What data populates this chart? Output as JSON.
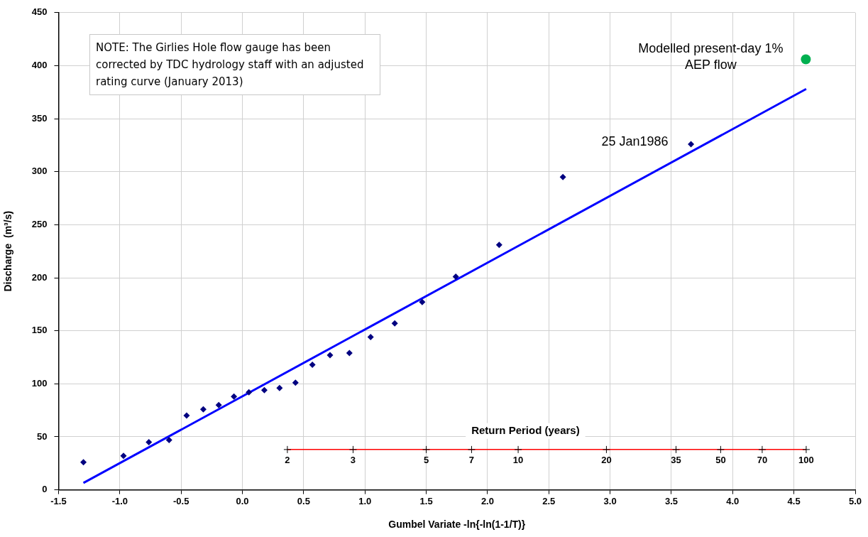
{
  "chart_data": {
    "type": "scatter",
    "xlabel": "Gumbel Variate -ln{-ln(1-1/T)}",
    "ylabel": "Discharge  (m³/s)",
    "xlim": [
      -1.5,
      5.0
    ],
    "xticks": [
      {
        "value": -1.5,
        "label": "-1.5"
      },
      {
        "value": -1.0,
        "label": "-1.0"
      },
      {
        "value": -0.5,
        "label": "-0.5"
      },
      {
        "value": 0,
        "label": "0.0"
      },
      {
        "value": 0.5,
        "label": "0.5"
      },
      {
        "value": 1.0,
        "label": "1.0"
      },
      {
        "value": 1.5,
        "label": "1.5"
      },
      {
        "value": 2.0,
        "label": "2.0"
      },
      {
        "value": 2.5,
        "label": "2.5"
      },
      {
        "value": 3.0,
        "label": "3.0"
      },
      {
        "value": 3.5,
        "label": "3.5"
      },
      {
        "value": 4.0,
        "label": "4.0"
      },
      {
        "value": 4.5,
        "label": "4.5"
      },
      {
        "value": 5.0,
        "label": "5.0"
      }
    ],
    "ylim": [
      0,
      450
    ],
    "yticks": [
      0,
      50,
      100,
      150,
      200,
      250,
      300,
      350,
      400,
      450
    ],
    "grid": true,
    "legend": false,
    "series": [
      {
        "color": "#000080",
        "marker": "diamond",
        "x": [
          -1.297,
          -0.97,
          -0.763,
          -0.598,
          -0.455,
          -0.319,
          -0.193,
          -0.069,
          0.053,
          0.179,
          0.303,
          0.433,
          0.571,
          0.715,
          0.873,
          1.046,
          1.243,
          1.467,
          1.741,
          2.095,
          2.615,
          3.66
        ],
        "values": [
          26,
          32,
          45,
          47,
          70,
          76,
          80,
          88,
          92,
          94,
          96,
          101,
          118,
          127,
          129,
          144,
          157,
          177,
          201,
          231,
          295,
          326
        ]
      },
      {
        "type": "line",
        "color": "#0000ff",
        "marker": "none",
        "x": [
          -1.297,
          4.6
        ],
        "values": [
          6.5,
          378
        ]
      },
      {
        "color": "#00b050",
        "marker": "circle",
        "x": [
          4.597
        ],
        "values": [
          406
        ]
      },
      {
        "type": "line",
        "color": "#ff0000",
        "marker": "cross",
        "x": [
          0.367,
          0.903,
          1.5,
          1.87,
          2.25,
          2.97,
          3.538,
          3.902,
          4.241,
          4.6
        ],
        "values": [
          38,
          38,
          38,
          38,
          38,
          38,
          38,
          38,
          38,
          38
        ]
      }
    ],
    "annotations": [
      "NOTE: The Girlies Hole flow gauge has been corrected by TDC hydrology staff with an adjusted rating curve (January 2013)",
      {
        "text": "25 Jan1986",
        "x": 3.66,
        "y": 326
      },
      {
        "text": "Modelled present-day 1% AEP flow",
        "x": 4.597,
        "y": 406
      },
      "Return Period (years)",
      {
        "text": "2",
        "x": 0.367,
        "y": 38
      },
      {
        "text": "3",
        "x": 0.903,
        "y": 38
      },
      {
        "text": "5",
        "x": 1.5,
        "y": 38
      },
      {
        "text": "7",
        "x": 1.87,
        "y": 38
      },
      {
        "text": "10",
        "x": 2.25,
        "y": 38
      },
      {
        "text": "20",
        "x": 2.97,
        "y": 38
      },
      {
        "text": "35",
        "x": 3.538,
        "y": 38
      },
      {
        "text": "50",
        "x": 3.902,
        "y": 38
      },
      {
        "text": "70",
        "x": 4.241,
        "y": 38
      },
      {
        "text": "100",
        "x": 4.6,
        "y": 38
      }
    ]
  }
}
